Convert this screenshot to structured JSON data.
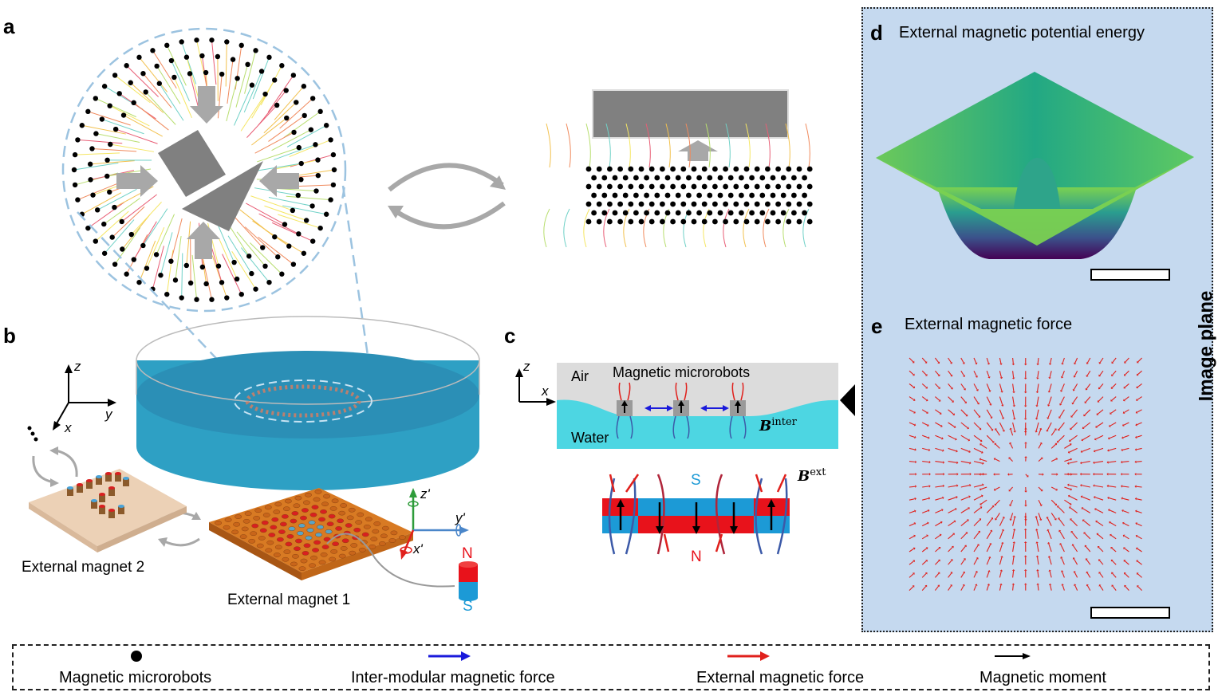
{
  "panels": {
    "a": "a",
    "b": "b",
    "c": "c",
    "d": "d",
    "e": "e"
  },
  "panel_b": {
    "axis_z": "z",
    "axis_x": "x",
    "axis_y": "y",
    "axis_z_prime": "z'",
    "axis_y_prime": "y'",
    "axis_x_prime": "x'",
    "magnet2_label": "External magnet 2",
    "magnet1_label": "External magnet 1",
    "pole_n": "N",
    "pole_s": "S"
  },
  "panel_c": {
    "axis_z": "z",
    "axis_x": "x",
    "air": "Air",
    "water": "Water",
    "microrobots": "Magnetic microrobots",
    "b_inter_base": "B",
    "b_inter_sup": "inter",
    "b_ext_base": "B",
    "b_ext_sup": "ext",
    "pole_s": "S",
    "pole_n": "N"
  },
  "panel_d": {
    "title": "External magnetic potential energy"
  },
  "panel_e": {
    "title": "External magnetic force"
  },
  "image_plane": "Image plane",
  "legend": {
    "items": [
      {
        "label": "Magnetic microrobots",
        "symbol": "dot",
        "color": "#000000"
      },
      {
        "label": "Inter-modular magnetic force",
        "symbol": "arrow",
        "color": "#1a1adb"
      },
      {
        "label": "External magnetic force",
        "symbol": "arrow",
        "color": "#e0201c"
      },
      {
        "label": "Magnetic moment",
        "symbol": "arrow",
        "color": "#000000"
      }
    ]
  },
  "colors": {
    "panel_bg": "#c5d9ef",
    "water": "#4dd6e2",
    "dish": "#2ea0c4",
    "magnet_red": "#e8121b",
    "magnet_blue": "#1c9ad6",
    "arrow_gray": "#a8a8a8"
  }
}
